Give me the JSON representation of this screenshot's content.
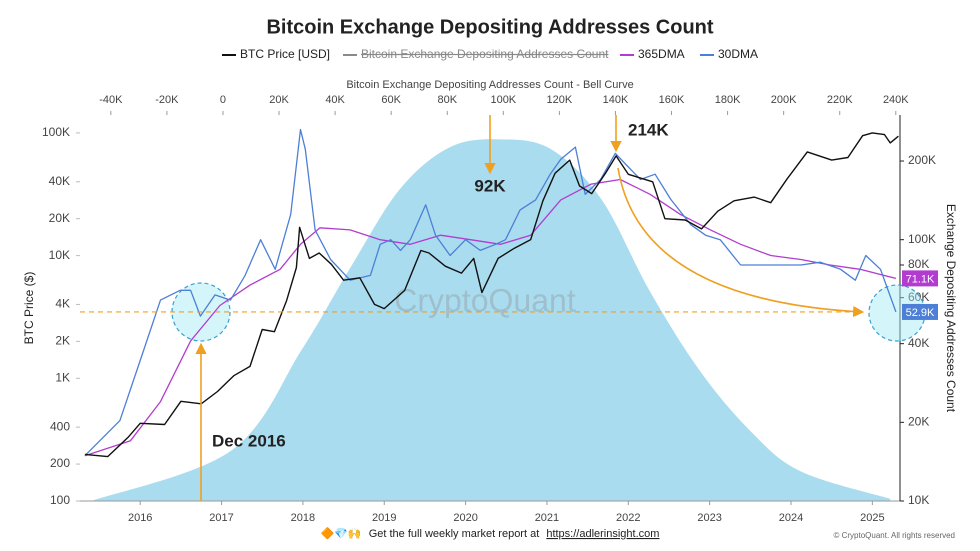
{
  "chart_data": {
    "type": "line",
    "title": "Bitcoin Exchange Depositing Addresses Count",
    "xlim": [
      2015.26,
      2025.34
    ],
    "xticks": [
      2016,
      2017,
      2018,
      2019,
      2020,
      2021,
      2022,
      2023,
      2024,
      2025
    ],
    "x2_title": "Bitcoin Exchange Depositing Addresses Count - Bell Curve",
    "x2lim": [
      -51000,
      241500
    ],
    "x2ticks": [
      {
        "value": -40000,
        "label": "-40K"
      },
      {
        "value": -20000,
        "label": "-20K"
      },
      0,
      {
        "value": 20000,
        "label": "20K"
      },
      {
        "value": 40000,
        "label": "40K"
      },
      {
        "value": 60000,
        "label": "60K"
      },
      {
        "value": 80000,
        "label": "80K"
      },
      {
        "value": 100000,
        "label": "100K"
      },
      {
        "value": 120000,
        "label": "120K"
      },
      {
        "value": 140000,
        "label": "140K"
      },
      {
        "value": 160000,
        "label": "160K"
      },
      {
        "value": 180000,
        "label": "180K"
      },
      {
        "value": 200000,
        "label": "200K"
      },
      {
        "value": 220000,
        "label": "220K"
      },
      {
        "value": 240000,
        "label": "240K"
      }
    ],
    "ylabel": "BTC Price ($)",
    "yscale": "log",
    "ylim": [
      100,
      140000
    ],
    "yticks": [
      100,
      200,
      400,
      {
        "value": 1000,
        "label": "1K"
      },
      {
        "value": 2000,
        "label": "2K"
      },
      {
        "value": 4000,
        "label": "4K"
      },
      {
        "value": 10000,
        "label": "10K"
      },
      {
        "value": 20000,
        "label": "20K"
      },
      {
        "value": 40000,
        "label": "40K"
      },
      {
        "value": 100000,
        "label": "100K"
      }
    ],
    "y2label": "Exchange Depositing Addresses Count",
    "y2scale": "log",
    "y2lim": [
      10000,
      300000
    ],
    "y2ticks": [
      {
        "value": 10000,
        "label": "10K"
      },
      {
        "value": 20000,
        "label": "20K"
      },
      {
        "value": 40000,
        "label": "40K"
      },
      {
        "value": 60000,
        "label": "60K"
      },
      {
        "value": 80000,
        "label": "80K"
      },
      {
        "value": 100000,
        "label": "100K"
      },
      {
        "value": 200000,
        "label": "200K"
      }
    ],
    "series": [
      {
        "name": "BTC Price [USD]",
        "color": "#111111",
        "x": [
          2015.32,
          2015.6,
          2015.85,
          2016.0,
          2016.3,
          2016.5,
          2016.75,
          2016.95,
          2017.15,
          2017.35,
          2017.5,
          2017.65,
          2017.8,
          2017.92,
          2017.96,
          2018.08,
          2018.2,
          2018.35,
          2018.5,
          2018.7,
          2018.88,
          2019.0,
          2019.25,
          2019.45,
          2019.55,
          2019.75,
          2019.95,
          2020.1,
          2020.2,
          2020.4,
          2020.6,
          2020.8,
          2020.95,
          2021.1,
          2021.28,
          2021.4,
          2021.55,
          2021.72,
          2021.85,
          2022.0,
          2022.3,
          2022.45,
          2022.7,
          2022.9,
          2023.1,
          2023.3,
          2023.55,
          2023.75,
          2023.95,
          2024.2,
          2024.5,
          2024.7,
          2024.88,
          2025.0,
          2025.15,
          2025.22,
          2025.32
        ],
        "values": [
          240,
          230,
          330,
          430,
          420,
          650,
          620,
          780,
          1050,
          1250,
          2500,
          2400,
          4300,
          8000,
          17000,
          9500,
          10500,
          8500,
          6300,
          6600,
          4000,
          3700,
          5200,
          11000,
          10500,
          8200,
          7200,
          9500,
          5000,
          9500,
          11500,
          13500,
          28000,
          47000,
          60000,
          37000,
          32000,
          47000,
          65000,
          46000,
          40000,
          20000,
          19500,
          16500,
          23000,
          28000,
          30000,
          27000,
          42000,
          70000,
          60000,
          63000,
          95000,
          100000,
          97000,
          83000,
          94000
        ]
      },
      {
        "name": "Bitcoin Exchange Depositing Addresses Count",
        "color": "#8a8a8a",
        "hidden": true
      },
      {
        "name": "365DMA",
        "color": "#b23ccf",
        "axis": "y2",
        "x": [
          2015.32,
          2015.88,
          2016.25,
          2016.62,
          2016.98,
          2017.35,
          2017.72,
          2017.97,
          2018.21,
          2018.58,
          2018.95,
          2019.32,
          2019.69,
          2020.06,
          2020.43,
          2020.8,
          2021.17,
          2021.54,
          2021.9,
          2022.27,
          2022.64,
          2023.01,
          2023.38,
          2023.75,
          2024.12,
          2024.48,
          2024.85,
          2025.29
        ],
        "values": [
          14900,
          17000,
          24000,
          41000,
          56000,
          67000,
          77000,
          96000,
          111000,
          109000,
          100000,
          96000,
          104000,
          100000,
          96000,
          104000,
          142000,
          163000,
          170000,
          149000,
          125000,
          109000,
          96000,
          87000,
          84000,
          80000,
          77000,
          71100
        ],
        "value_labels": [
          null,
          null,
          null,
          null,
          null,
          null,
          null,
          null,
          null,
          null,
          null,
          null,
          null,
          null,
          null,
          null,
          null,
          null,
          null,
          null,
          null,
          null,
          null,
          null,
          null,
          null,
          null,
          "71.1K"
        ]
      },
      {
        "name": "30DMA",
        "color": "#4d7fd6",
        "axis": "y2",
        "x": [
          2015.32,
          2015.75,
          2016.0,
          2016.25,
          2016.49,
          2016.62,
          2016.74,
          2016.92,
          2017.11,
          2017.29,
          2017.48,
          2017.66,
          2017.85,
          2017.97,
          2018.03,
          2018.15,
          2018.34,
          2018.58,
          2018.83,
          2018.95,
          2019.08,
          2019.2,
          2019.32,
          2019.51,
          2019.63,
          2019.81,
          2020.0,
          2020.18,
          2020.37,
          2020.49,
          2020.67,
          2020.86,
          2021.04,
          2021.17,
          2021.35,
          2021.47,
          2021.66,
          2021.84,
          2021.97,
          2022.15,
          2022.33,
          2022.52,
          2022.77,
          2022.95,
          2023.13,
          2023.38,
          2023.63,
          2023.87,
          2024.12,
          2024.36,
          2024.61,
          2024.79,
          2024.92,
          2025.1,
          2025.29
        ],
        "values": [
          14900,
          20300,
          34500,
          58700,
          64000,
          64000,
          51000,
          61500,
          58700,
          73000,
          100000,
          77000,
          125000,
          264000,
          222000,
          109000,
          84000,
          70000,
          73000,
          96000,
          100000,
          91000,
          100000,
          136000,
          104000,
          87000,
          100000,
          91000,
          96000,
          100000,
          130000,
          142000,
          178000,
          203000,
          226000,
          149000,
          170000,
          214000,
          194000,
          170000,
          178000,
          143000,
          114000,
          104000,
          100000,
          80000,
          80000,
          80000,
          80000,
          82000,
          77000,
          70000,
          87000,
          77000,
          52900
        ],
        "value_labels": [
          null,
          null,
          null,
          null,
          null,
          null,
          null,
          null,
          null,
          null,
          null,
          null,
          null,
          null,
          null,
          null,
          null,
          null,
          null,
          null,
          null,
          null,
          null,
          null,
          null,
          null,
          null,
          null,
          null,
          null,
          null,
          null,
          null,
          null,
          null,
          null,
          null,
          null,
          null,
          null,
          null,
          null,
          null,
          null,
          null,
          null,
          null,
          null,
          null,
          null,
          null,
          null,
          null,
          null,
          "52.9K"
        ]
      }
    ],
    "bell_curve": {
      "type": "area",
      "color": "#a9dcef",
      "xaxis": "x2",
      "axis": "y2",
      "x": [
        -47000,
        3000,
        28000,
        45000,
        63000,
        81000,
        99000,
        117000,
        135000,
        152000,
        170000,
        188000,
        206000,
        238000
      ],
      "values": [
        10000,
        15600,
        37800,
        76700,
        155600,
        226000,
        242000,
        222000,
        142600,
        64200,
        31600,
        18600,
        13000,
        10200
      ]
    },
    "annotations": [
      "92K",
      "214K",
      "Dec 2016"
    ],
    "watermark": "CryptoQuant"
  },
  "footer": {
    "emoji": "🔶💎🙌",
    "text": "Get the full weekly market report at",
    "link": "https://adlerinsight.com",
    "copyright": "© CryptoQuant. All rights reserved"
  }
}
